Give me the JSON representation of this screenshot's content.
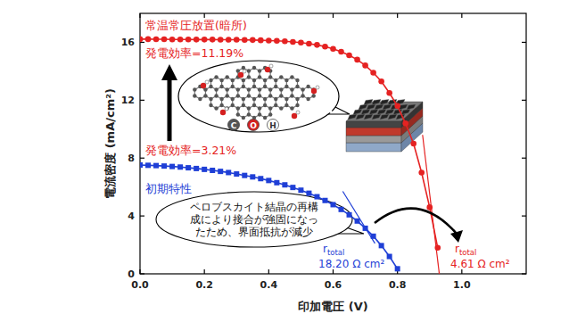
{
  "chart_data": {
    "type": "line",
    "x_label": "印加電圧 (V)",
    "y_label": "電流密度 (mA/cm²)",
    "xlim": [
      0,
      1.2
    ],
    "ylim": [
      0,
      18
    ],
    "xticks": [
      {
        "value": 0,
        "label": "0.0"
      },
      0.2,
      0.4,
      0.6,
      0.8,
      {
        "value": 1,
        "label": "1.0"
      }
    ],
    "yticks": [
      0,
      4,
      8,
      12,
      16
    ],
    "series": [
      {
        "name": "常温常圧放置(暗所)",
        "color": "#e52222",
        "marker": "circle",
        "efficiency": "発電効率=11.19%",
        "x": [
          0,
          0.025,
          0.05,
          0.075,
          0.1,
          0.125,
          0.15,
          0.175,
          0.2,
          0.225,
          0.25,
          0.275,
          0.3,
          0.325,
          0.35,
          0.375,
          0.4,
          0.425,
          0.45,
          0.475,
          0.5,
          0.525,
          0.55,
          0.575,
          0.6,
          0.625,
          0.65,
          0.675,
          0.7,
          0.725,
          0.75,
          0.775,
          0.8,
          0.825,
          0.85,
          0.875,
          0.9,
          0.925
        ],
        "values": [
          16.22,
          16.22,
          16.21,
          16.21,
          16.2,
          16.2,
          16.2,
          16.19,
          16.19,
          16.19,
          16.18,
          16.18,
          16.18,
          16.17,
          16.16,
          16.14,
          16.12,
          16.1,
          16.07,
          16.03,
          15.98,
          15.9,
          15.82,
          15.7,
          15.55,
          15.35,
          15.1,
          14.8,
          14.4,
          13.9,
          13.3,
          12.5,
          11.6,
          10.4,
          9.0,
          7.0,
          4.6,
          1.8
        ],
        "tangent": {
          "x": [
            0.878,
            0.93
          ],
          "y": [
            9.6,
            0
          ]
        },
        "resistance": {
          "label": "r",
          "subscript": "total",
          "value": "4.61 Ω cm²"
        }
      },
      {
        "name": "初期特性",
        "color": "#1f3fd6",
        "marker": "square",
        "efficiency": "発電効率=3.21%",
        "x": [
          0,
          0.025,
          0.05,
          0.075,
          0.1,
          0.125,
          0.15,
          0.175,
          0.2,
          0.225,
          0.25,
          0.275,
          0.3,
          0.325,
          0.35,
          0.375,
          0.4,
          0.425,
          0.45,
          0.475,
          0.5,
          0.525,
          0.55,
          0.575,
          0.6,
          0.625,
          0.65,
          0.675,
          0.7,
          0.725,
          0.75,
          0.775,
          0.8
        ],
        "values": [
          7.52,
          7.5,
          7.48,
          7.45,
          7.42,
          7.38,
          7.33,
          7.28,
          7.22,
          7.15,
          7.08,
          7.0,
          6.9,
          6.8,
          6.7,
          6.58,
          6.45,
          6.3,
          6.15,
          5.97,
          5.78,
          5.57,
          5.33,
          5.07,
          4.78,
          4.45,
          4.08,
          3.65,
          3.15,
          2.6,
          1.95,
          1.2,
          0.35
        ],
        "tangent": {
          "x": [
            0.63,
            0.73
          ],
          "y": [
            5.7,
            2.1
          ]
        },
        "resistance": {
          "label": "r",
          "subscript": "total",
          "value": "18.20 Ω cm²"
        }
      }
    ],
    "callout": [
      "ペロブスカイト結晶の再構",
      "成により接合が強固になっ",
      "たため、界面抵抗が減少"
    ],
    "inset_atoms": [
      "C",
      "O",
      "H"
    ]
  }
}
